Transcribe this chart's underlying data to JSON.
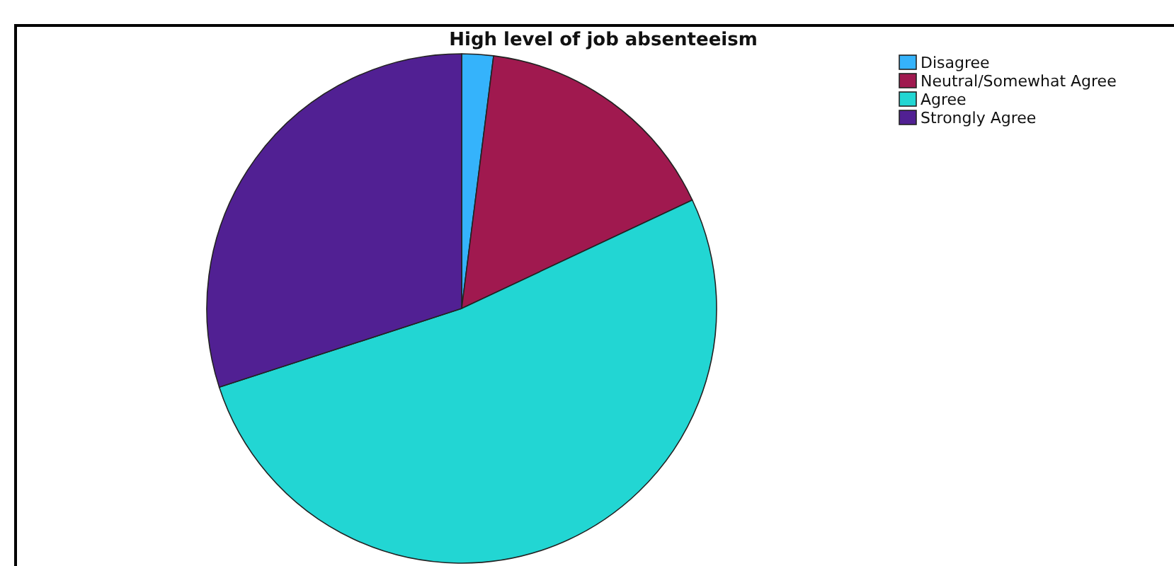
{
  "chart_data": {
    "type": "pie",
    "title": "High level of job absenteeism",
    "categories": [
      "Disagree",
      "Neutral/Somewhat Agree",
      "Agree",
      "Strongly Agree"
    ],
    "values": [
      2,
      16,
      52,
      30
    ],
    "colors": [
      "#35b3fb",
      "#a0194f",
      "#22d6d3",
      "#512093"
    ],
    "legend": "top right"
  }
}
